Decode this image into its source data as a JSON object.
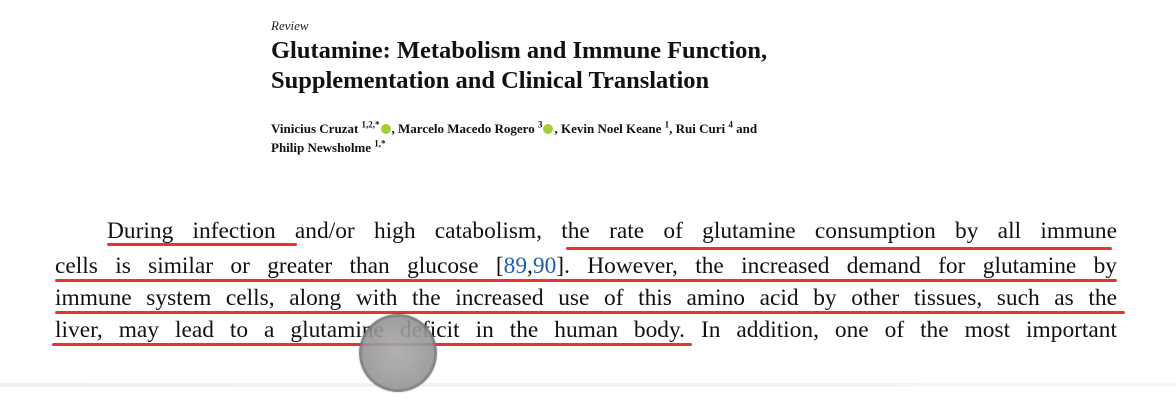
{
  "article": {
    "type_label": "Review",
    "title_line1": "Glutamine: Metabolism and Immune Function,",
    "title_line2": "Supplementation and Clinical Translation",
    "authors": [
      {
        "name": "Vinicius Cruzat",
        "affil": "1,2,*",
        "orcid": true
      },
      {
        "name": "Marcelo Macedo Rogero",
        "affil": "3",
        "orcid": true
      },
      {
        "name": "Kevin Noel Keane",
        "affil": "1",
        "orcid": false
      },
      {
        "name": "Rui Curi",
        "affil": "4",
        "orcid": false
      },
      {
        "name": "Philip Newsholme",
        "affil": "1,*",
        "orcid": false
      }
    ],
    "sep_comma": ", ",
    "sep_and": " and"
  },
  "paragraph": {
    "line1": "During infection and/or high catabolism, the rate of glutamine consumption by all immune",
    "line2_pre": "cells is similar or greater than glucose [",
    "cite1": "89",
    "cite_sep": ",",
    "cite2": "90",
    "line2_post": "].  However, the increased demand for glutamine by",
    "line3": "immune system cells, along with the increased use of this amino acid by other tissues, such as the",
    "line4": "liver, may lead to a glutamine deficit in the human body.  In addition, one of the most important"
  },
  "annotation": {
    "underline_color": "#e8342a",
    "cite_color": "#1f5fa6",
    "orcid_color": "#a6ce39"
  }
}
